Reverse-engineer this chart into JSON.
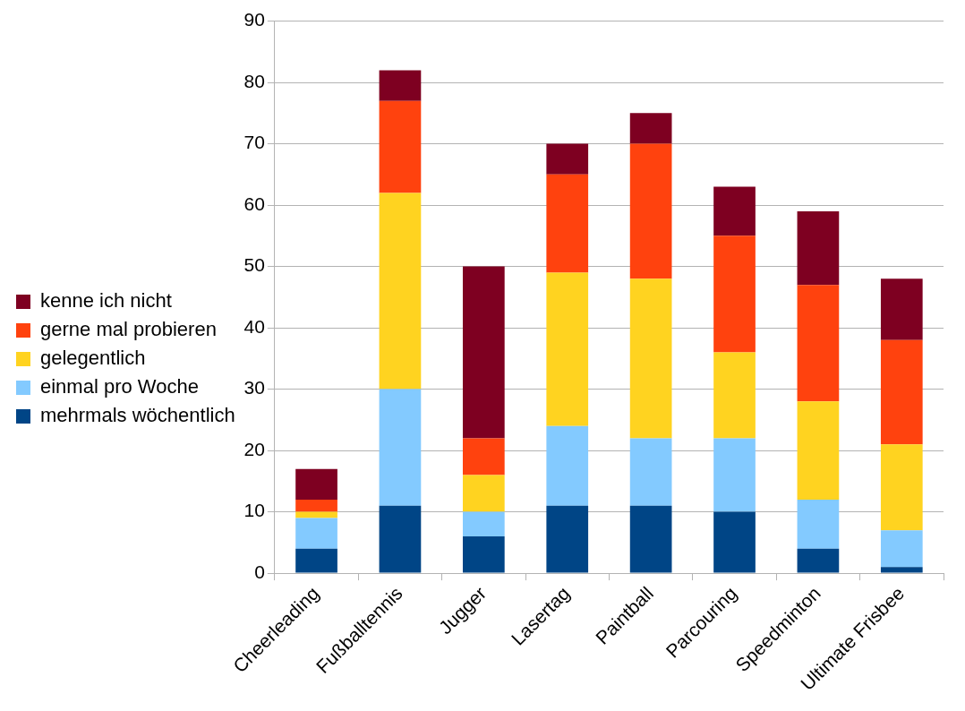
{
  "chart_data": {
    "type": "bar",
    "stacked": true,
    "categories": [
      "Cheerleading",
      "Fußballtennis",
      "Jugger",
      "Lasertag",
      "Paintball",
      "Parcouring",
      "Speedminton",
      "Ultimate Frisbee"
    ],
    "series": [
      {
        "name": "mehrmals wöchentlich",
        "color": "#004586",
        "values": [
          4,
          11,
          6,
          11,
          11,
          10,
          4,
          1
        ]
      },
      {
        "name": "einmal pro Woche",
        "color": "#83caff",
        "values": [
          5,
          19,
          4,
          13,
          11,
          12,
          8,
          6
        ]
      },
      {
        "name": "gelegentlich",
        "color": "#ffd320",
        "values": [
          1,
          32,
          6,
          25,
          26,
          14,
          16,
          14
        ]
      },
      {
        "name": "gerne mal probieren",
        "color": "#ff420e",
        "values": [
          2,
          15,
          6,
          16,
          22,
          19,
          19,
          17
        ]
      },
      {
        "name": "kenne ich nicht",
        "color": "#7e0021",
        "values": [
          5,
          5,
          28,
          5,
          5,
          8,
          12,
          10
        ]
      }
    ],
    "ylim": [
      0,
      90
    ],
    "yticks": [
      0,
      10,
      20,
      30,
      40,
      50,
      60,
      70,
      80,
      90
    ],
    "grid": "y",
    "legend": "left"
  }
}
